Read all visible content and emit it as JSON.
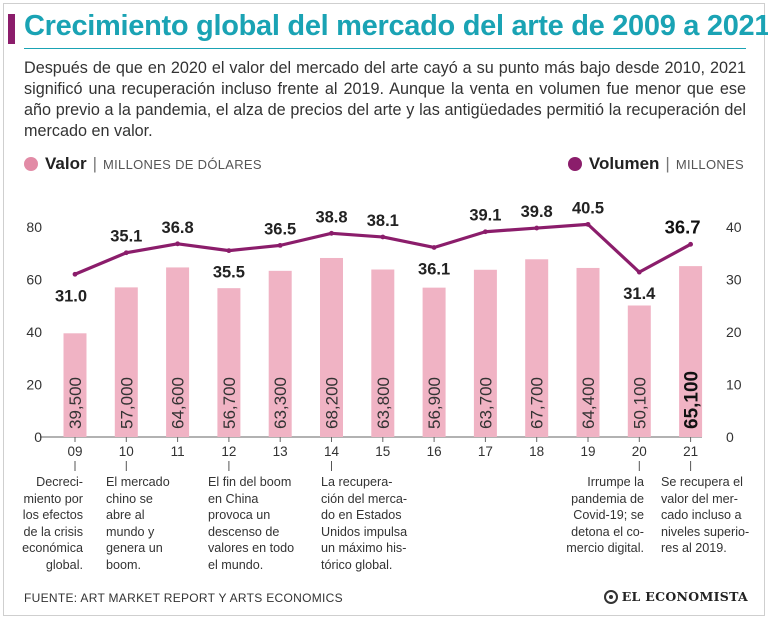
{
  "title": "Crecimiento global del mercado del arte de 2009 a 2021",
  "intro": "Después de que en 2020 el valor del mercado del arte cayó a su punto más bajo desde 2010, 2021 significó una recuperación incluso frente al 2019. Aunque la venta en volumen fue menor que ese año previo a la pandemia, el alza de precios del arte y las antigüedades permitió la recuperación del mercado en valor.",
  "legend": {
    "valor_label": "Valor",
    "valor_unit": "MILLONES DE DÓLARES",
    "volumen_label": "Volumen",
    "volumen_unit": "MILLONES",
    "separator": "|"
  },
  "colors": {
    "bar": "#f0b3c4",
    "bar_dot": "#e28ba6",
    "line": "#8b1d6b",
    "title": "#1aa3b4"
  },
  "chart_data": {
    "type": "bar+line",
    "categories": [
      "09",
      "10",
      "11",
      "12",
      "13",
      "14",
      "15",
      "16",
      "17",
      "18",
      "19",
      "20",
      "21"
    ],
    "series": [
      {
        "name": "Valor",
        "unit": "millones de dólares",
        "type": "bar",
        "axis": "left",
        "values": [
          39500,
          57000,
          64600,
          56700,
          63300,
          68200,
          63800,
          56900,
          63700,
          67700,
          64400,
          50100,
          65100
        ],
        "labels": [
          "39,500",
          "57,000",
          "64,600",
          "56,700",
          "63,300",
          "68,200",
          "63,800",
          "56,900",
          "63,700",
          "67,700",
          "64,400",
          "50,100",
          "65,100"
        ]
      },
      {
        "name": "Volumen",
        "unit": "millones",
        "type": "line",
        "axis": "right",
        "values": [
          31.0,
          35.1,
          36.8,
          35.5,
          36.5,
          38.8,
          38.1,
          36.1,
          39.1,
          39.8,
          40.5,
          31.4,
          36.7
        ],
        "labels": [
          "31.0",
          "35.1",
          "36.8",
          "35.5",
          "36.5",
          "38.8",
          "38.1",
          "36.1",
          "39.1",
          "39.8",
          "40.5",
          "31.4",
          "36.7"
        ]
      }
    ],
    "left_axis": {
      "ticks": [
        "0",
        "20",
        "40",
        "60",
        "80"
      ],
      "tick_values": [
        0,
        20,
        40,
        60,
        80
      ],
      "range": [
        0,
        80
      ],
      "scale_note": "thousands of millions"
    },
    "right_axis": {
      "ticks": [
        "0",
        "10",
        "20",
        "30",
        "40"
      ],
      "tick_values": [
        0,
        10,
        20,
        30,
        40
      ],
      "range": [
        0,
        40
      ]
    },
    "annotations": [
      {
        "category": "09",
        "text": "Decreci-\nmiento por\nlos efectos\nde la crisis\neconómica\nglobal."
      },
      {
        "category": "10",
        "text": "El mercado\nchino se\nabre al\nmundo y\ngenera un\nboom."
      },
      {
        "category": "12",
        "text": "El fin del boom\nen China\nprovoca un\ndescenso de\nvalores en todo\nel mundo."
      },
      {
        "category": "14",
        "text": "La recupera-\nción del merca-\ndo en Estados\nUnidos impulsa\nun máximo his-\ntórico global."
      },
      {
        "category": "20",
        "text": "Irrumpe la\npandemia de\nCovid-19; se\ndetona el co-\nmercio digital."
      },
      {
        "category": "21",
        "text": "Se recupera el\nvalor del mer-\ncado incluso a\nniveles superio-\nres al 2019."
      }
    ]
  },
  "source": "FUENTE: ART MARKET REPORT Y ARTS ECONOMICS",
  "logo": "EL ECONOMISTA"
}
